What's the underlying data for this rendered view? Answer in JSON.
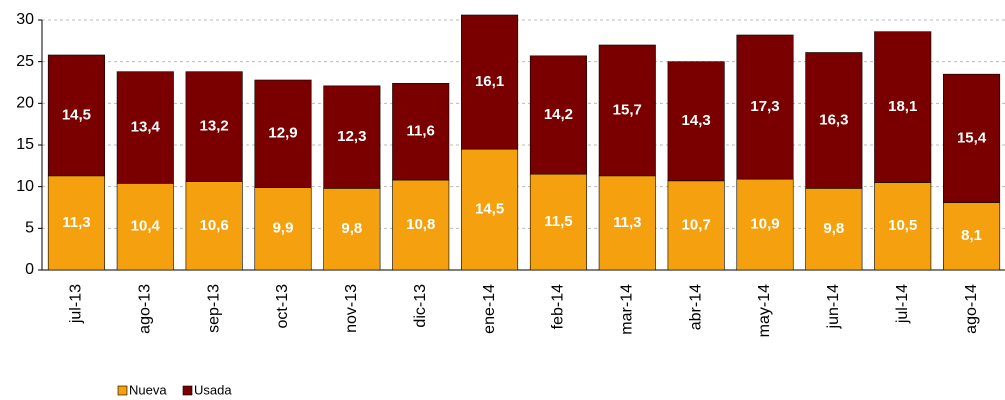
{
  "chart_data": {
    "type": "stacked_bar",
    "categories": [
      "jul-13",
      "ago-13",
      "sep-13",
      "oct-13",
      "nov-13",
      "dic-13",
      "ene-14",
      "feb-14",
      "mar-14",
      "abr-14",
      "may-14",
      "jun-14",
      "jul-14",
      "ago-14"
    ],
    "series": [
      {
        "name": "Nueva",
        "color": "#f5a10f",
        "values": [
          11.3,
          10.4,
          10.6,
          9.9,
          9.8,
          10.8,
          14.5,
          11.5,
          11.3,
          10.7,
          10.9,
          9.8,
          10.5,
          8.1
        ],
        "value_labels": [
          "11,3",
          "10,4",
          "10,6",
          "9,9",
          "9,8",
          "10,8",
          "14,5",
          "11,5",
          "11,3",
          "10,7",
          "10,9",
          "9,8",
          "10,5",
          "8,1"
        ]
      },
      {
        "name": "Usada",
        "color": "#7a0000",
        "values": [
          14.5,
          13.4,
          13.2,
          12.9,
          12.3,
          11.6,
          16.1,
          14.2,
          15.7,
          14.3,
          17.3,
          16.3,
          18.1,
          15.4
        ],
        "value_labels": [
          "14,5",
          "13,4",
          "13,2",
          "12,9",
          "12,3",
          "11,6",
          "16,1",
          "14,2",
          "15,7",
          "14,3",
          "17,3",
          "16,3",
          "18,1",
          "15,4"
        ]
      }
    ],
    "ylim": [
      0,
      30
    ],
    "yticks": [
      0,
      5,
      10,
      15,
      20,
      25,
      30
    ],
    "grid": true,
    "legend": "bottom-left"
  }
}
